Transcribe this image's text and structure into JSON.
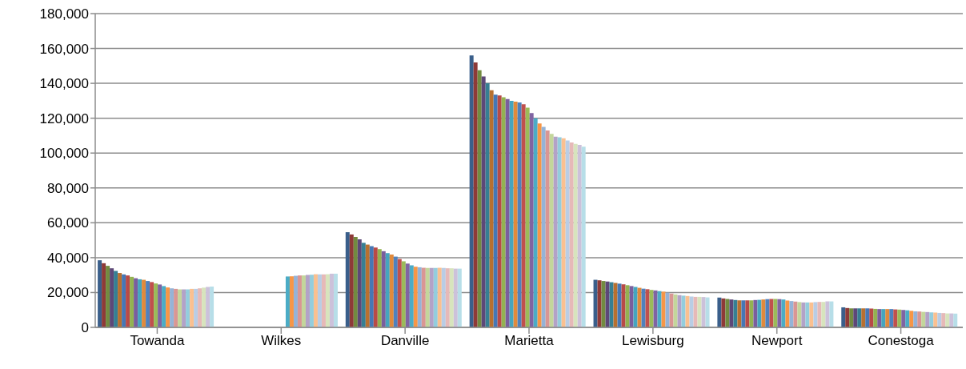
{
  "chart_data": {
    "type": "bar",
    "categories": [
      "Towanda",
      "Wilkes",
      "Danville",
      "Marietta",
      "Lewisburg",
      "Newport",
      "Conestoga"
    ],
    "ylim": [
      0,
      180000
    ],
    "yticks": [
      0,
      {
        "value": 20000,
        "label": "20,000"
      },
      {
        "value": 40000,
        "label": "40,000"
      },
      {
        "value": 60000,
        "label": "60,000"
      },
      {
        "value": 80000,
        "label": "80,000"
      },
      {
        "value": 100000,
        "label": "100,000"
      },
      {
        "value": 120000,
        "label": "120,000"
      },
      {
        "value": 140000,
        "label": "140,000"
      },
      {
        "value": 160000,
        "label": "160,000"
      },
      {
        "value": 180000,
        "label": "180,000"
      }
    ],
    "grid": "y",
    "series": [
      {
        "color": "#3a5f8b",
        "values": [
          38500,
          null,
          54600,
          156000,
          27300,
          17100,
          11500
        ]
      },
      {
        "color": "#8e3a38",
        "values": [
          36800,
          null,
          53300,
          152000,
          27000,
          16600,
          11100
        ]
      },
      {
        "color": "#728b40",
        "values": [
          35300,
          null,
          51900,
          147500,
          26600,
          16300,
          10900
        ]
      },
      {
        "color": "#5d4878",
        "values": [
          33900,
          null,
          50500,
          144000,
          26300,
          16000,
          10900
        ]
      },
      {
        "color": "#367f93",
        "values": [
          32400,
          null,
          48500,
          140000,
          25900,
          15700,
          10900
        ]
      },
      {
        "color": "#b8702f",
        "values": [
          31200,
          null,
          47500,
          136000,
          25500,
          15500,
          10900
        ]
      },
      {
        "color": "#4677b5",
        "values": [
          30400,
          null,
          46600,
          133500,
          25100,
          15500,
          10900
        ]
      },
      {
        "color": "#b84a47",
        "values": [
          29800,
          null,
          45800,
          133000,
          24700,
          15500,
          10800
        ]
      },
      {
        "color": "#93b251",
        "values": [
          29000,
          null,
          44900,
          132000,
          24200,
          15500,
          10600
        ]
      },
      {
        "color": "#7a5e9d",
        "values": [
          28200,
          null,
          43700,
          131000,
          23700,
          15700,
          10500
        ]
      },
      {
        "color": "#45a5bf",
        "values": [
          27600,
          null,
          42600,
          130000,
          23200,
          15800,
          10500
        ]
      },
      {
        "color": "#e08a3c",
        "values": [
          27300,
          null,
          41800,
          129500,
          22700,
          16000,
          10500
        ]
      },
      {
        "color": "#4f81bd",
        "values": [
          26600,
          null,
          40600,
          129000,
          22200,
          16200,
          10500
        ]
      },
      {
        "color": "#c0504d",
        "values": [
          26000,
          null,
          39200,
          128000,
          21900,
          16300,
          10300
        ]
      },
      {
        "color": "#9bbb59",
        "values": [
          25200,
          null,
          37900,
          126000,
          21500,
          16300,
          10200
        ]
      },
      {
        "color": "#8064a2",
        "values": [
          24600,
          null,
          36600,
          123000,
          21200,
          16200,
          10000
        ]
      },
      {
        "color": "#4bacc6",
        "values": [
          23700,
          29200,
          35600,
          120000,
          20800,
          16000,
          9800
        ]
      },
      {
        "color": "#f79646",
        "values": [
          22900,
          29300,
          34800,
          117000,
          20500,
          15400,
          9500
        ]
      },
      {
        "color": "#95b3d7",
        "values": [
          22400,
          29600,
          34500,
          115000,
          19900,
          15100,
          9200
        ]
      },
      {
        "color": "#d99694",
        "values": [
          22100,
          29800,
          34200,
          113000,
          19400,
          14800,
          9100
        ]
      },
      {
        "color": "#c3d69b",
        "values": [
          21800,
          29800,
          34100,
          111000,
          18900,
          14500,
          8900
        ]
      },
      {
        "color": "#b3a2c7",
        "values": [
          21800,
          30100,
          34100,
          109400,
          18500,
          14300,
          8800
        ]
      },
      {
        "color": "#93cddd",
        "values": [
          21800,
          30200,
          34100,
          109000,
          18200,
          14300,
          8600
        ]
      },
      {
        "color": "#fac090",
        "values": [
          22100,
          30500,
          34200,
          108500,
          18000,
          14300,
          8500
        ]
      },
      {
        "color": "#b9cde5",
        "values": [
          22100,
          30400,
          34100,
          107200,
          17700,
          14500,
          8300
        ]
      },
      {
        "color": "#e6b9b8",
        "values": [
          22400,
          30400,
          33900,
          106100,
          17500,
          14600,
          8200
        ]
      },
      {
        "color": "#d7e4bd",
        "values": [
          22800,
          30500,
          33900,
          105300,
          17500,
          14600,
          8000
        ]
      },
      {
        "color": "#ccc1da",
        "values": [
          23200,
          30800,
          33700,
          104700,
          17400,
          14900,
          8000
        ]
      },
      {
        "color": "#b7dee8",
        "values": [
          23400,
          30800,
          33700,
          103700,
          17200,
          14900,
          7900
        ]
      }
    ]
  }
}
